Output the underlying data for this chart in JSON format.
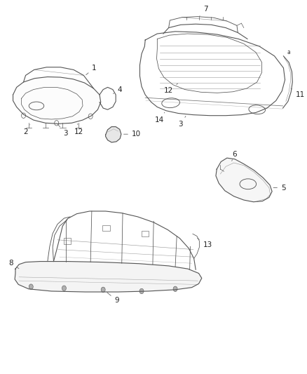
{
  "background_color": "#ffffff",
  "line_color": "#555555",
  "fig_width": 4.38,
  "fig_height": 5.33,
  "dpi": 100
}
